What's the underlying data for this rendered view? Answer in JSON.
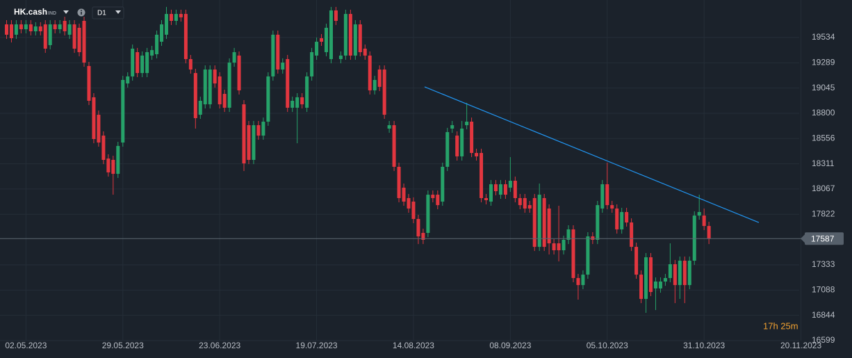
{
  "chart_data": {
    "type": "candlestick",
    "symbol": "HK.cash",
    "symbol_type": "IND",
    "timeframe": "D1",
    "countdown": "17h 25m",
    "up_color": "#26a269",
    "down_color": "#e2363f",
    "grid": true,
    "ylim": [
      16599,
      19897
    ],
    "yticks": [
      16599,
      16844,
      17088,
      17333,
      17822,
      18067,
      18311,
      18556,
      18800,
      19045,
      19289,
      19534
    ],
    "last_price": 17587,
    "trendline": {
      "start": [
        86.3,
        19056
      ],
      "end": [
        155.3,
        17743
      ],
      "color": "#2196f3"
    },
    "categories": [
      null,
      null,
      null,
      null,
      "02.05.2023",
      null,
      null,
      null,
      null,
      null,
      null,
      null,
      null,
      null,
      null,
      null,
      null,
      null,
      null,
      null,
      null,
      null,
      null,
      null,
      "29.05.2023",
      null,
      null,
      null,
      null,
      null,
      null,
      null,
      null,
      null,
      null,
      null,
      null,
      null,
      null,
      null,
      null,
      null,
      null,
      null,
      "23.06.2023",
      null,
      null,
      null,
      null,
      null,
      null,
      null,
      null,
      null,
      null,
      null,
      null,
      null,
      null,
      null,
      null,
      null,
      null,
      null,
      "19.07.2023",
      null,
      null,
      null,
      null,
      null,
      null,
      null,
      null,
      null,
      null,
      null,
      null,
      null,
      null,
      null,
      null,
      null,
      null,
      null,
      "14.08.2023",
      null,
      null,
      null,
      null,
      null,
      null,
      null,
      null,
      null,
      null,
      null,
      null,
      null,
      null,
      null,
      null,
      null,
      null,
      null,
      "08.09.2023",
      null,
      null,
      null,
      null,
      null,
      null,
      null,
      null,
      null,
      null,
      null,
      null,
      null,
      null,
      null,
      null,
      null,
      null,
      null,
      "05.10.2023",
      null,
      null,
      null,
      null,
      null,
      null,
      null,
      null,
      null,
      null,
      null,
      null,
      null,
      null,
      null,
      null,
      null,
      null,
      null,
      "31.10.2023",
      null,
      null,
      null,
      null,
      null,
      null,
      null,
      null,
      null,
      null,
      null,
      null,
      null,
      null,
      null,
      null,
      null,
      null,
      null,
      "20.11.2023",
      null
    ],
    "open": [
      19661,
      19661,
      19561,
      19661,
      19614,
      19661,
      19594,
      19641,
      19661,
      19460,
      19661,
      19614,
      19695,
      19561,
      19661,
      19628,
      19695,
      19258,
      18955,
      18786,
      18584,
      18362,
      18349,
      18214,
      18517,
      19089,
      19157,
      19392,
      19190,
      19190,
      19359,
      19372,
      19493,
      19561,
      19762,
      19695,
      19762,
      19762,
      19325,
      19190,
      18786,
      18887,
      18887,
      19224,
      19157,
      18988,
      18854,
      19291,
      19359,
      18887,
      18685,
      18349,
      18685,
      18584,
      18719,
      19157,
      19561,
      19224,
      19325,
      18854,
      18854,
      18955,
      18854,
      19157,
      19359,
      19527,
      19392,
      19325,
      19796,
      19325,
      19359,
      19762,
      19359,
      19661,
      19426,
      19359,
      19022,
      19224,
      19224,
      18652,
      18685,
      18282,
      18080,
      17979,
      17945,
      17777,
      17642,
      17642,
      18012,
      18012,
      17945,
      18282,
      18652,
      18584,
      18383,
      18685,
      18719,
      18416,
      18416,
      17979,
      17945,
      18113,
      18012,
      18113,
      18080,
      18147,
      17979,
      17979,
      17911,
      17979,
      17507,
      17979,
      17878,
      17541,
      17541,
      17474,
      17575,
      17676,
      17205,
      17137,
      17238,
      17608,
      17575,
      17878,
      18113,
      17911,
      17878,
      17676,
      17844,
      17743,
      17507,
      17238,
      17003,
      17406,
      17104,
      17104,
      17171,
      17205,
      17339,
      17137,
      17373,
      17137,
      17373,
      17810,
      17810,
      17709,
      null,
      null,
      null,
      null,
      null,
      null,
      null,
      null,
      null,
      null,
      null,
      null,
      null,
      null,
      null,
      null,
      null,
      null,
      null,
      null
    ],
    "high": [
      19702,
      19702,
      19702,
      19702,
      19702,
      19702,
      19682,
      19682,
      19702,
      19702,
      19702,
      19702,
      19735,
      19702,
      19702,
      19668,
      19735,
      19298,
      18995,
      18827,
      18625,
      18403,
      18389,
      18524,
      19163,
      19197,
      19466,
      19433,
      19399,
      19433,
      19453,
      19601,
      19702,
      19830,
      19803,
      19803,
      19803,
      19803,
      19365,
      19231,
      18961,
      19264,
      19264,
      19264,
      19197,
      19029,
      19332,
      19433,
      19399,
      18928,
      18726,
      18726,
      18726,
      18759,
      19197,
      19601,
      19601,
      19332,
      19365,
      18961,
      18995,
      18995,
      19197,
      19433,
      19534,
      19567,
      19668,
      19830,
      19830,
      19399,
      19803,
      19803,
      19702,
      19702,
      19466,
      19399,
      19163,
      19264,
      19264,
      18726,
      18726,
      18322,
      18120,
      18019,
      17986,
      17817,
      17683,
      18053,
      18053,
      18053,
      18322,
      18659,
      18726,
      18625,
      18726,
      18901,
      18759,
      18457,
      18457,
      18019,
      18154,
      18154,
      18154,
      18154,
      18376,
      18187,
      18019,
      18019,
      17952,
      18019,
      18120,
      18019,
      17918,
      17582,
      17905,
      17615,
      17716,
      17716,
      17245,
      17279,
      17649,
      17649,
      17952,
      18154,
      18322,
      17952,
      17918,
      17885,
      17885,
      17783,
      17548,
      17279,
      17447,
      17447,
      17211,
      17211,
      17245,
      17541,
      17380,
      17413,
      17413,
      17413,
      17851,
      18012,
      17878,
      17750,
      null,
      null,
      null,
      null,
      null,
      null,
      null,
      null,
      null,
      null,
      null,
      null,
      null,
      null,
      null,
      null,
      null,
      null,
      null,
      null
    ],
    "low": [
      19520,
      19486,
      19520,
      19574,
      19574,
      19554,
      19554,
      19554,
      19385,
      19419,
      19574,
      19574,
      19554,
      19520,
      19385,
      19352,
      19251,
      18880,
      18510,
      18477,
      18308,
      18187,
      18012,
      18174,
      18477,
      19049,
      19116,
      19150,
      19150,
      19150,
      19318,
      19332,
      19453,
      19520,
      19655,
      19655,
      19688,
      19284,
      19184,
      18652,
      18746,
      18847,
      18847,
      19049,
      18847,
      18813,
      18813,
      19251,
      18982,
      18241,
      18308,
      18308,
      18544,
      18544,
      18679,
      19116,
      19184,
      19184,
      18813,
      18813,
      18510,
      18847,
      18813,
      19116,
      19318,
      19453,
      19352,
      19284,
      19655,
      19284,
      19318,
      19318,
      19318,
      19352,
      19318,
      18982,
      18982,
      19015,
      18746,
      18611,
      18241,
      17938,
      17905,
      17837,
      17736,
      17534,
      17534,
      17602,
      17938,
      17871,
      17905,
      18241,
      18611,
      18342,
      18342,
      18645,
      18376,
      18342,
      17938,
      17918,
      17905,
      18006,
      17972,
      17972,
      18039,
      17938,
      17871,
      17837,
      17837,
      17467,
      17467,
      17467,
      17433,
      17433,
      17366,
      17433,
      17534,
      17164,
      16996,
      17097,
      17198,
      17534,
      17534,
      17837,
      17871,
      17837,
      17635,
      17635,
      17703,
      17467,
      17198,
      16962,
      16868,
      17030,
      16895,
      17063,
      17130,
      17164,
      16962,
      17003,
      16962,
      17097,
      17332,
      17770,
      17669,
      17534,
      null,
      null,
      null,
      null,
      null,
      null,
      null,
      null,
      null,
      null,
      null,
      null,
      null,
      null,
      null,
      null,
      null,
      null,
      null,
      null
    ],
    "close": [
      19561,
      19527,
      19661,
      19614,
      19661,
      19594,
      19641,
      19594,
      19426,
      19661,
      19614,
      19661,
      19594,
      19661,
      19426,
      19392,
      19291,
      18921,
      18551,
      18517,
      18349,
      18228,
      18214,
      18484,
      19123,
      19157,
      19426,
      19190,
      19359,
      19392,
      19412,
      19561,
      19661,
      19762,
      19695,
      19762,
      19729,
      19325,
      19224,
      18753,
      18921,
      19224,
      19224,
      19089,
      18887,
      18854,
      19291,
      19392,
      19022,
      18315,
      18349,
      18685,
      18584,
      18719,
      19157,
      19561,
      19224,
      19291,
      18854,
      18921,
      18955,
      18887,
      19157,
      19392,
      19493,
      19493,
      19628,
      19796,
      19695,
      19359,
      19762,
      19359,
      19661,
      19392,
      19359,
      19022,
      19123,
      19056,
      18786,
      18685,
      18282,
      17979,
      17945,
      17878,
      17777,
      17608,
      17575,
      18012,
      17979,
      17911,
      18282,
      18618,
      18685,
      18383,
      18652,
      18719,
      18416,
      18383,
      17979,
      17959,
      18113,
      18046,
      18113,
      18012,
      18147,
      17979,
      17911,
      17878,
      17878,
      17507,
      18012,
      17507,
      17541,
      17474,
      17474,
      17575,
      17676,
      17205,
      17137,
      17238,
      17608,
      17575,
      17911,
      18113,
      17911,
      17878,
      17676,
      17844,
      17743,
      17507,
      17238,
      17003,
      17406,
      17070,
      17171,
      17171,
      17205,
      17339,
      17137,
      17373,
      17137,
      17373,
      17810,
      17844,
      17709,
      17587,
      null,
      null,
      null,
      null,
      null,
      null,
      null,
      null,
      null,
      null,
      null,
      null,
      null,
      null,
      null,
      null,
      null,
      null,
      null,
      null
    ]
  }
}
